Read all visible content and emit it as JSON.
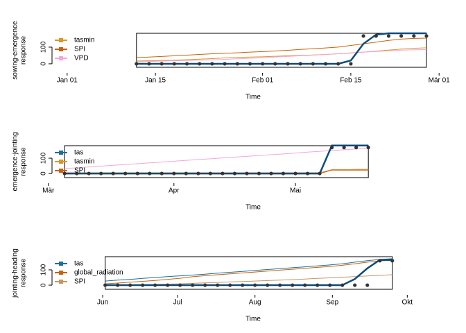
{
  "chart_data": [
    {
      "type": "line",
      "xlabel": "Time",
      "ylabel": [
        "sowing-emergence",
        "response"
      ],
      "x": [
        12,
        14,
        16,
        18,
        20,
        22,
        24,
        26,
        28,
        30,
        32,
        34,
        36,
        38,
        40,
        42,
        44,
        46,
        48,
        50,
        52,
        54,
        56,
        58
      ],
      "xlim": [
        -1.4,
        62.4
      ],
      "xticks": [
        {
          "value": 1,
          "label": "Jan 01"
        },
        {
          "value": 15,
          "label": "Jan 15"
        },
        {
          "value": 32,
          "label": "Feb 01"
        },
        {
          "value": 46,
          "label": "Feb 15"
        },
        {
          "value": 60,
          "label": "Mär 01"
        }
      ],
      "ylim": [
        -21,
        183
      ],
      "yticks": [
        0,
        100
      ],
      "series": [
        {
          "name": "tasmin",
          "color": "#d9962b",
          "values": [
            17,
            18,
            20,
            22,
            25,
            28,
            31,
            35,
            38,
            40,
            42,
            45,
            48,
            50,
            53,
            56,
            60,
            65,
            70,
            76,
            82,
            88,
            93,
            96
          ]
        },
        {
          "name": "SPI",
          "color": "#c8620a",
          "values": [
            37,
            40,
            44,
            48,
            52,
            56,
            60,
            63,
            66,
            70,
            73,
            77,
            81,
            86,
            90,
            95,
            100,
            110,
            120,
            130,
            140,
            148,
            152,
            154
          ]
        },
        {
          "name": "VPD",
          "color": "#f4a6d7",
          "values": [
            12,
            14,
            16,
            18,
            20,
            22,
            24,
            27,
            30,
            33,
            36,
            40,
            44,
            48,
            52,
            56,
            60,
            64,
            70,
            74,
            78,
            82,
            84,
            85
          ]
        },
        {
          "color": "#0b4b7a",
          "linewidth": 2.5,
          "values": [
            0,
            0,
            0,
            0,
            0,
            0,
            0,
            0,
            0,
            0,
            0,
            0,
            0,
            0,
            0,
            0,
            0,
            20,
            120,
            175,
            183,
            183,
            183,
            183
          ]
        },
        {
          "color": "#333333",
          "marker": "points",
          "values": [
            0,
            0,
            0,
            0,
            0,
            0,
            0,
            0,
            0,
            0,
            0,
            0,
            0,
            0,
            0,
            0,
            0,
            0,
            167,
            167,
            167,
            167,
            167,
            167
          ]
        }
      ]
    },
    {
      "type": "line",
      "xlabel": "Time",
      "ylabel": [
        "emergence-jointing",
        "response"
      ],
      "x": [
        64,
        67,
        70,
        73,
        76,
        79,
        82,
        85,
        88,
        91,
        94,
        97,
        100,
        103,
        106,
        109,
        112,
        115,
        118,
        121,
        124,
        127,
        130,
        133,
        136,
        139
      ],
      "xlim": [
        60.9,
        160.2
      ],
      "xticks": [
        {
          "value": 60,
          "label": "Mär"
        },
        {
          "value": 91,
          "label": "Apr"
        },
        {
          "value": 121,
          "label": "Mai"
        }
      ],
      "ylim": [
        -27,
        182
      ],
      "yticks": [
        0,
        100
      ],
      "series": [
        {
          "name": "tas",
          "color": "#1b6f9a",
          "values": [
            2,
            2,
            2,
            2,
            2,
            2,
            2,
            2,
            2,
            2,
            2,
            2,
            2,
            2,
            2,
            2,
            2,
            2,
            2,
            2,
            2,
            2,
            24,
            25,
            26,
            27
          ]
        },
        {
          "name": "tasmin",
          "color": "#d9962b",
          "values": [
            5,
            5,
            5,
            5,
            5,
            5,
            5,
            5,
            5,
            5,
            5,
            5,
            5,
            5,
            5,
            5,
            5,
            5,
            5,
            5,
            5,
            5,
            25,
            25,
            26,
            26
          ]
        },
        {
          "name": "SPI",
          "color": "#c8620a",
          "values": [
            0,
            0,
            0,
            0,
            0,
            0,
            0,
            0,
            0,
            0,
            0,
            0,
            0,
            0,
            0,
            0,
            0,
            0,
            0,
            0,
            0,
            0,
            22,
            22,
            22,
            22
          ]
        },
        {
          "color": "#f4a6d7",
          "values": [
            32,
            37,
            43,
            48,
            54,
            59,
            64,
            70,
            75,
            80,
            86,
            91,
            96,
            102,
            107,
            112,
            118,
            123,
            128,
            134,
            140,
            145,
            150,
            155,
            160,
            165
          ]
        },
        {
          "color": "#0b4b7a",
          "linewidth": 2.5,
          "values": [
            0,
            0,
            0,
            0,
            0,
            0,
            0,
            0,
            0,
            0,
            0,
            0,
            0,
            0,
            0,
            0,
            0,
            0,
            0,
            0,
            0,
            0,
            183,
            183,
            183,
            183
          ]
        },
        {
          "color": "#333333",
          "marker": "points",
          "values": [
            0,
            0,
            0,
            0,
            0,
            0,
            0,
            0,
            0,
            0,
            0,
            0,
            0,
            0,
            0,
            0,
            0,
            0,
            0,
            0,
            0,
            0,
            170,
            170,
            170,
            170
          ]
        }
      ]
    },
    {
      "type": "line",
      "xlabel": "Time",
      "ylabel": [
        "jointing-heading",
        "response"
      ],
      "x": [
        153,
        158,
        163,
        168,
        173,
        178,
        183,
        188,
        193,
        198,
        203,
        208,
        213,
        218,
        223,
        228,
        233,
        238,
        243,
        248,
        253,
        258,
        263,
        268
      ],
      "xlim": [
        131.7,
        292.8
      ],
      "xticks": [
        {
          "value": 152,
          "label": "Jun"
        },
        {
          "value": 182,
          "label": "Jul"
        },
        {
          "value": 213,
          "label": "Aug"
        },
        {
          "value": 244,
          "label": "Sep"
        },
        {
          "value": 274,
          "label": "Okt"
        }
      ],
      "ylim": [
        -27,
        186
      ],
      "yticks": [
        0,
        100
      ],
      "series": [
        {
          "name": "tas",
          "color": "#1b6f9a",
          "values": [
            27,
            33,
            38,
            44,
            50,
            56,
            61,
            66,
            72,
            78,
            84,
            90,
            96,
            102,
            108,
            114,
            120,
            126,
            132,
            140,
            150,
            160,
            168,
            173
          ]
        },
        {
          "name": "global_radiation",
          "color": "#c5620e",
          "values": [
            9,
            14,
            19,
            25,
            31,
            38,
            45,
            55,
            62,
            68,
            74,
            80,
            86,
            92,
            98,
            104,
            110,
            116,
            122,
            130,
            140,
            150,
            158,
            164
          ]
        },
        {
          "name": "SPI",
          "color": "#c8955e",
          "values": [
            0,
            1,
            2,
            3,
            5,
            7,
            9,
            12,
            15,
            18,
            21,
            24,
            27,
            30,
            33,
            36,
            40,
            44,
            48,
            52,
            56,
            60,
            64,
            68
          ]
        },
        {
          "color": "#0b4b7a",
          "linewidth": 2.5,
          "values": [
            0,
            0,
            0,
            0,
            0,
            0,
            0,
            0,
            0,
            0,
            0,
            0,
            0,
            0,
            0,
            0,
            0,
            0,
            0,
            0,
            40,
            110,
            165,
            165
          ]
        },
        {
          "color": "#333333",
          "marker": "points",
          "values": [
            0,
            0,
            0,
            0,
            0,
            0,
            0,
            0,
            0,
            0,
            0,
            0,
            0,
            0,
            0,
            0,
            0,
            0,
            0,
            0,
            0,
            0,
            160,
            160
          ]
        }
      ]
    }
  ]
}
